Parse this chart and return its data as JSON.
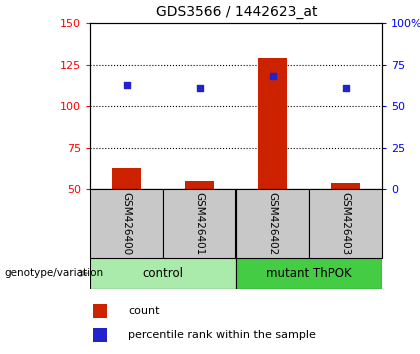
{
  "title": "GDS3566 / 1442623_at",
  "samples": [
    "GSM426400",
    "GSM426401",
    "GSM426402",
    "GSM426403"
  ],
  "group_labels": [
    "control",
    "mutant ThPOK"
  ],
  "count_values": [
    63,
    55,
    129,
    54
  ],
  "percentile_values": [
    113,
    111,
    118,
    111
  ],
  "ylim_left": [
    50,
    150
  ],
  "ylim_right": [
    0,
    100
  ],
  "yticks_left": [
    50,
    75,
    100,
    125,
    150
  ],
  "yticks_right": [
    0,
    25,
    50,
    75,
    100
  ],
  "ytick_labels_right": [
    "0",
    "25",
    "50",
    "75",
    "100%"
  ],
  "hlines": [
    75,
    100,
    125
  ],
  "bar_color": "#CC2200",
  "dot_color": "#2222CC",
  "bar_width": 0.4,
  "sample_box_color": "#C8C8C8",
  "control_color": "#AAEAAA",
  "mutant_color": "#44CC44",
  "legend_count_label": "count",
  "legend_pct_label": "percentile rank within the sample",
  "genotype_label": "genotype/variation"
}
